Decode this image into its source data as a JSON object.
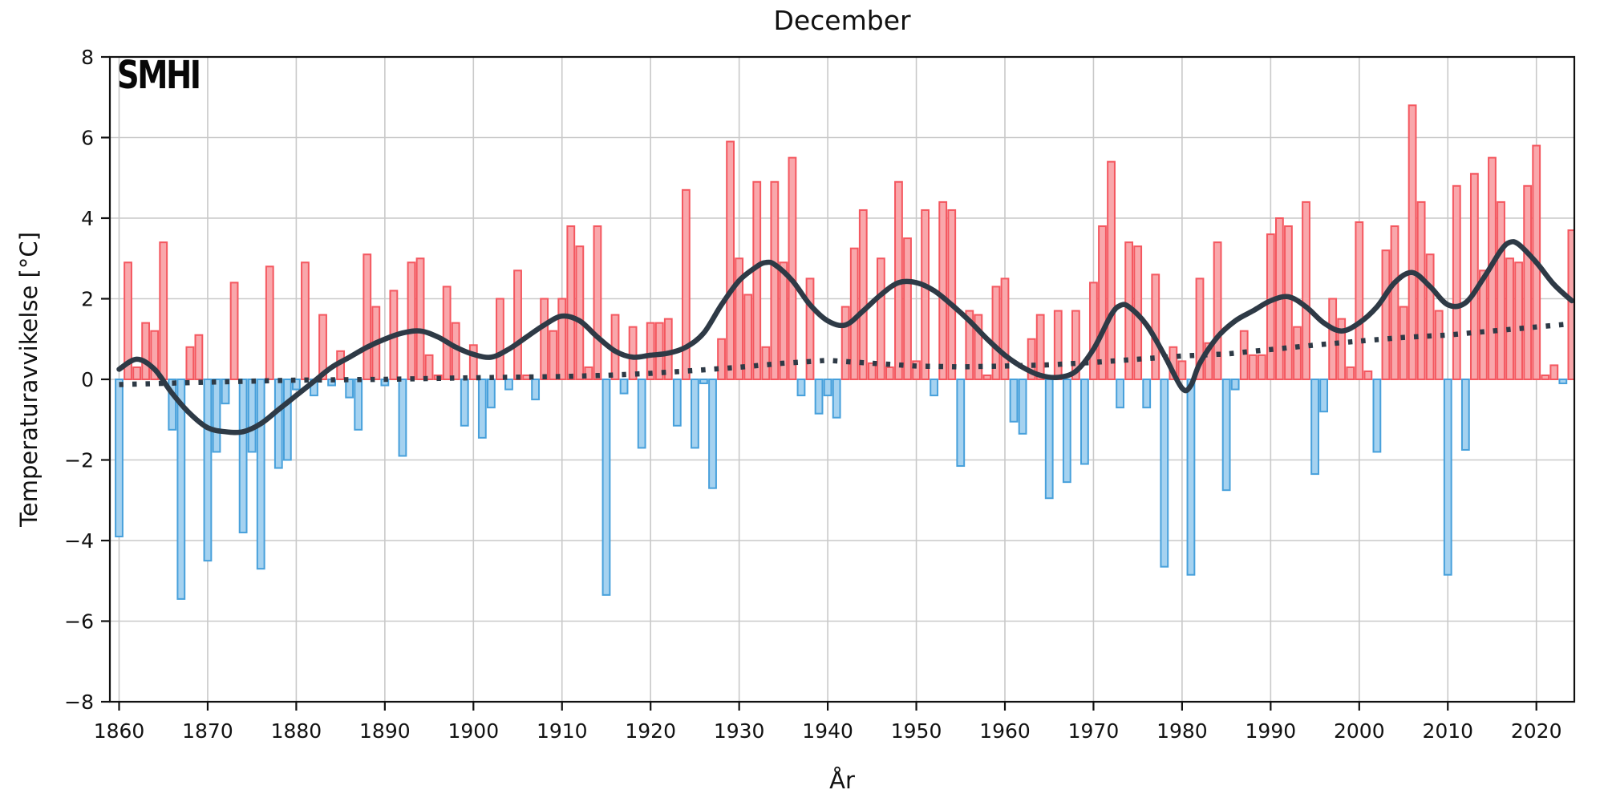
{
  "header": {
    "title": "December",
    "logo": "SMHI"
  },
  "axes": {
    "y_label": "Temperaturavvikelse [°C]",
    "x_label": "År",
    "y_ticks": [
      8,
      6,
      4,
      2,
      0,
      -2,
      -4,
      -6,
      -8
    ],
    "x_ticks": [
      1860,
      1870,
      1880,
      1890,
      1900,
      1910,
      1920,
      1930,
      1940,
      1950,
      1960,
      1970,
      1980,
      1990,
      2000,
      2010,
      2020
    ]
  },
  "chart_data": {
    "type": "bar",
    "title": "December",
    "xlabel": "År",
    "ylabel": "Temperaturavvikelse [°C]",
    "ylim": [
      -8,
      8
    ],
    "xlim": [
      1859,
      2024.3
    ],
    "grid": true,
    "legend_position": "none",
    "start_year": 1860,
    "end_year": 2024,
    "values": [
      -3.9,
      2.9,
      0.3,
      1.4,
      1.2,
      3.4,
      -1.25,
      -5.45,
      0.8,
      1.1,
      -4.5,
      -1.8,
      -0.6,
      2.4,
      -3.8,
      -1.8,
      -4.7,
      2.8,
      -2.2,
      -2.0,
      -0.25,
      2.9,
      -0.4,
      1.6,
      -0.15,
      0.7,
      -0.45,
      -1.25,
      3.1,
      1.8,
      -0.15,
      2.2,
      -1.9,
      2.9,
      3.0,
      0.6,
      0.1,
      2.3,
      1.4,
      -1.15,
      0.85,
      -1.45,
      -0.7,
      2.0,
      -0.25,
      2.7,
      0.1,
      -0.5,
      2.0,
      1.2,
      2.0,
      3.8,
      3.3,
      0.3,
      3.8,
      -5.35,
      1.6,
      -0.35,
      1.3,
      -1.7,
      1.4,
      1.4,
      1.5,
      -1.15,
      4.7,
      -1.7,
      -0.1,
      -2.7,
      1.0,
      5.9,
      3.0,
      2.1,
      4.9,
      0.8,
      4.9,
      2.9,
      5.5,
      -0.4,
      2.5,
      -0.85,
      -0.4,
      -0.95,
      1.8,
      3.25,
      4.2,
      0.4,
      3.0,
      0.3,
      4.9,
      3.5,
      0.45,
      4.2,
      -0.4,
      4.4,
      4.2,
      -2.15,
      1.7,
      1.6,
      0.1,
      2.3,
      2.5,
      -1.05,
      -1.35,
      1.0,
      1.6,
      -2.95,
      1.7,
      -2.55,
      1.7,
      -2.1,
      2.4,
      3.8,
      5.4,
      -0.7,
      3.4,
      3.3,
      -0.7,
      2.6,
      -4.65,
      0.8,
      0.45,
      -4.85,
      2.5,
      0.9,
      3.4,
      -2.75,
      -0.25,
      1.2,
      0.6,
      0.6,
      3.6,
      4.0,
      3.8,
      1.3,
      4.4,
      -2.35,
      -0.8,
      2.0,
      1.5,
      0.3,
      3.9,
      0.2,
      -1.8,
      3.2,
      3.8,
      1.8,
      6.8,
      4.4,
      3.1,
      1.7,
      -4.85,
      4.8,
      -1.75,
      5.1,
      2.7,
      5.5,
      4.4,
      3.0,
      2.9,
      4.8,
      5.8,
      0.1,
      0.35,
      -0.1,
      3.7
    ],
    "smoothed_line": [
      [
        1860,
        0.25
      ],
      [
        1862,
        0.5
      ],
      [
        1864,
        0.25
      ],
      [
        1866,
        -0.35
      ],
      [
        1868,
        -0.85
      ],
      [
        1870,
        -1.2
      ],
      [
        1872,
        -1.3
      ],
      [
        1874,
        -1.3
      ],
      [
        1876,
        -1.1
      ],
      [
        1878,
        -0.75
      ],
      [
        1880,
        -0.4
      ],
      [
        1882,
        -0.05
      ],
      [
        1884,
        0.3
      ],
      [
        1886,
        0.55
      ],
      [
        1888,
        0.8
      ],
      [
        1890,
        1.0
      ],
      [
        1892,
        1.15
      ],
      [
        1894,
        1.2
      ],
      [
        1896,
        1.05
      ],
      [
        1898,
        0.8
      ],
      [
        1900,
        0.62
      ],
      [
        1902,
        0.55
      ],
      [
        1904,
        0.75
      ],
      [
        1906,
        1.05
      ],
      [
        1908,
        1.35
      ],
      [
        1910,
        1.57
      ],
      [
        1912,
        1.45
      ],
      [
        1914,
        1.05
      ],
      [
        1916,
        0.7
      ],
      [
        1918,
        0.55
      ],
      [
        1920,
        0.6
      ],
      [
        1922,
        0.65
      ],
      [
        1924,
        0.8
      ],
      [
        1926,
        1.15
      ],
      [
        1928,
        1.85
      ],
      [
        1930,
        2.45
      ],
      [
        1932,
        2.8
      ],
      [
        1933,
        2.9
      ],
      [
        1934,
        2.85
      ],
      [
        1936,
        2.45
      ],
      [
        1938,
        1.85
      ],
      [
        1940,
        1.45
      ],
      [
        1942,
        1.35
      ],
      [
        1944,
        1.7
      ],
      [
        1946,
        2.1
      ],
      [
        1948,
        2.4
      ],
      [
        1950,
        2.4
      ],
      [
        1952,
        2.2
      ],
      [
        1954,
        1.85
      ],
      [
        1956,
        1.45
      ],
      [
        1958,
        1.0
      ],
      [
        1960,
        0.6
      ],
      [
        1962,
        0.3
      ],
      [
        1964,
        0.1
      ],
      [
        1966,
        0.05
      ],
      [
        1968,
        0.2
      ],
      [
        1970,
        0.75
      ],
      [
        1972,
        1.6
      ],
      [
        1973,
        1.83
      ],
      [
        1974,
        1.8
      ],
      [
        1976,
        1.35
      ],
      [
        1978,
        0.6
      ],
      [
        1980,
        -0.22
      ],
      [
        1981,
        -0.15
      ],
      [
        1982,
        0.4
      ],
      [
        1984,
        1.05
      ],
      [
        1986,
        1.45
      ],
      [
        1988,
        1.7
      ],
      [
        1990,
        1.95
      ],
      [
        1992,
        2.05
      ],
      [
        1994,
        1.8
      ],
      [
        1996,
        1.4
      ],
      [
        1998,
        1.2
      ],
      [
        2000,
        1.4
      ],
      [
        2002,
        1.8
      ],
      [
        2004,
        2.4
      ],
      [
        2006,
        2.65
      ],
      [
        2008,
        2.3
      ],
      [
        2010,
        1.85
      ],
      [
        2012,
        1.9
      ],
      [
        2014,
        2.5
      ],
      [
        2016,
        3.2
      ],
      [
        2017,
        3.4
      ],
      [
        2018,
        3.35
      ],
      [
        2020,
        2.9
      ],
      [
        2022,
        2.35
      ],
      [
        2024,
        1.95
      ]
    ],
    "trend_dotted": [
      [
        1860,
        -0.13
      ],
      [
        1870,
        -0.07
      ],
      [
        1880,
        -0.02
      ],
      [
        1890,
        0.0
      ],
      [
        1900,
        0.04
      ],
      [
        1910,
        0.07
      ],
      [
        1915,
        0.1
      ],
      [
        1920,
        0.15
      ],
      [
        1925,
        0.22
      ],
      [
        1930,
        0.3
      ],
      [
        1935,
        0.4
      ],
      [
        1940,
        0.47
      ],
      [
        1945,
        0.4
      ],
      [
        1950,
        0.33
      ],
      [
        1955,
        0.31
      ],
      [
        1960,
        0.33
      ],
      [
        1965,
        0.36
      ],
      [
        1970,
        0.42
      ],
      [
        1975,
        0.5
      ],
      [
        1980,
        0.58
      ],
      [
        1985,
        0.63
      ],
      [
        1990,
        0.74
      ],
      [
        1995,
        0.85
      ],
      [
        2000,
        0.95
      ],
      [
        2005,
        1.04
      ],
      [
        2010,
        1.1
      ],
      [
        2015,
        1.2
      ],
      [
        2020,
        1.3
      ],
      [
        2024,
        1.38
      ]
    ],
    "colors": {
      "positive_fill": "#F9A7AB",
      "positive_stroke": "#F4575F",
      "negative_fill": "#A5D2F0",
      "negative_stroke": "#47A0DB",
      "line_dark": "#2E3A46",
      "grid": "#C9C9C9",
      "spine": "#111111"
    }
  }
}
